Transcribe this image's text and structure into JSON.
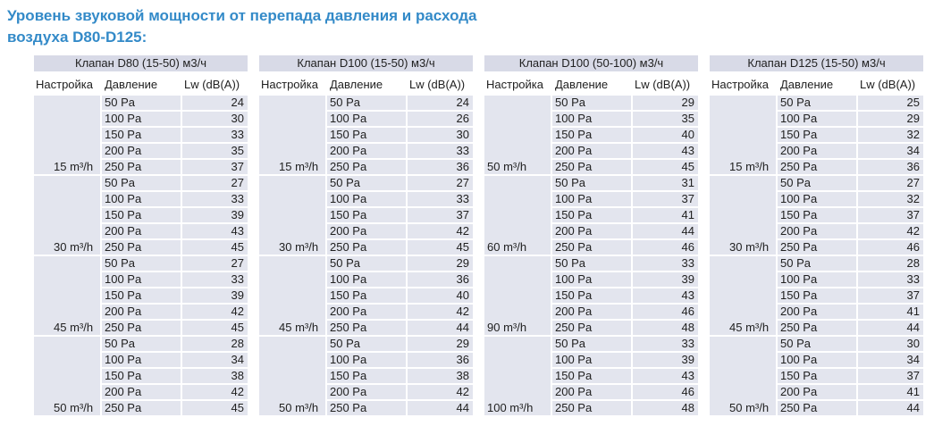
{
  "page_title": {
    "line1": "Уровень звуковой мощности от перепада давления и расхода",
    "line2": "воздуха D80-D125:"
  },
  "colors": {
    "accent_blue": "#338ac8",
    "table_title_bg": "#d8dae7",
    "row_bg": "#e3e5ee",
    "header_bg": "#ffffff",
    "text": "#212121"
  },
  "column_headers": {
    "setting": "Настройка",
    "pressure": "Давление",
    "lw": "Lw (dB(A))"
  },
  "tables": [
    {
      "title": "Клапан D80 (15-50) м3/ч",
      "indented_labels": true,
      "groups": [
        {
          "flow": "15 m³/h",
          "pressures": [
            "50 Pa",
            "100 Pa",
            "150 Pa",
            "200 Pa",
            "250 Pa"
          ],
          "levels": [
            24,
            30,
            33,
            35,
            37
          ]
        },
        {
          "flow": "30 m³/h",
          "pressures": [
            "50 Pa",
            "100 Pa",
            "150 Pa",
            "200 Pa",
            "250 Pa"
          ],
          "levels": [
            27,
            33,
            39,
            43,
            45
          ]
        },
        {
          "flow": "45 m³/h",
          "pressures": [
            "50 Pa",
            "100 Pa",
            "150 Pa",
            "200 Pa",
            "250 Pa"
          ],
          "levels": [
            27,
            33,
            39,
            42,
            45
          ]
        },
        {
          "flow": "50 m³/h",
          "pressures": [
            "50 Pa",
            "100 Pa",
            "150 Pa",
            "200 Pa",
            "250 Pa"
          ],
          "levels": [
            28,
            34,
            38,
            42,
            45
          ]
        }
      ]
    },
    {
      "title": "Клапан D100 (15-50) м3/ч",
      "indented_labels": true,
      "groups": [
        {
          "flow": "15 m³/h",
          "pressures": [
            "50 Pa",
            "100 Pa",
            "150 Pa",
            "200 Pa",
            "250 Pa"
          ],
          "levels": [
            24,
            26,
            30,
            33,
            36
          ]
        },
        {
          "flow": "30 m³/h",
          "pressures": [
            "50 Pa",
            "100 Pa",
            "150 Pa",
            "200 Pa",
            "250 Pa"
          ],
          "levels": [
            27,
            33,
            37,
            42,
            45
          ]
        },
        {
          "flow": "45 m³/h",
          "pressures": [
            "50 Pa",
            "100 Pa",
            "150 Pa",
            "200 Pa",
            "250 Pa"
          ],
          "levels": [
            29,
            36,
            40,
            42,
            44
          ]
        },
        {
          "flow": "50 m³/h",
          "pressures": [
            "50 Pa",
            "100 Pa",
            "150 Pa",
            "200 Pa",
            "250 Pa"
          ],
          "levels": [
            29,
            36,
            38,
            42,
            44
          ]
        }
      ]
    },
    {
      "title": "Клапан D100 (50-100) м3/ч",
      "indented_labels": false,
      "groups": [
        {
          "flow": "50 m³/h",
          "pressures": [
            "50 Pa",
            "100 Pa",
            "150 Pa",
            "200 Pa",
            "250 Pa"
          ],
          "levels": [
            29,
            35,
            40,
            43,
            45
          ]
        },
        {
          "flow": "60 m³/h",
          "pressures": [
            "50 Pa",
            "100 Pa",
            "150 Pa",
            "200 Pa",
            "250 Pa"
          ],
          "levels": [
            31,
            37,
            41,
            44,
            46
          ]
        },
        {
          "flow": "90 m³/h",
          "pressures": [
            "50 Pa",
            "100 Pa",
            "150 Pa",
            "200 Pa",
            "250 Pa"
          ],
          "levels": [
            33,
            39,
            43,
            46,
            48
          ]
        },
        {
          "flow": "100 m³/h",
          "pressures": [
            "50 Pa",
            "100 Pa",
            "150 Pa",
            "200 Pa",
            "250 Pa"
          ],
          "levels": [
            33,
            39,
            43,
            46,
            48
          ]
        }
      ]
    },
    {
      "title": "Клапан D125 (15-50) м3/ч",
      "indented_labels": true,
      "groups": [
        {
          "flow": "15 m³/h",
          "pressures": [
            "50 Pa",
            "100 Pa",
            "150 Pa",
            "200 Pa",
            "250 Pa"
          ],
          "levels": [
            25,
            29,
            32,
            34,
            36
          ]
        },
        {
          "flow": "30 m³/h",
          "pressures": [
            "50 Pa",
            "100 Pa",
            "150 Pa",
            "200 Pa",
            "250 Pa"
          ],
          "levels": [
            27,
            32,
            37,
            42,
            46
          ]
        },
        {
          "flow": "45 m³/h",
          "pressures": [
            "50 Pa",
            "100 Pa",
            "150 Pa",
            "200 Pa",
            "250 Pa"
          ],
          "levels": [
            28,
            33,
            37,
            41,
            44
          ]
        },
        {
          "flow": "50 m³/h",
          "pressures": [
            "50 Pa",
            "100 Pa",
            "150 Pa",
            "200 Pa",
            "250 Pa"
          ],
          "levels": [
            30,
            34,
            37,
            41,
            44
          ]
        }
      ]
    }
  ]
}
